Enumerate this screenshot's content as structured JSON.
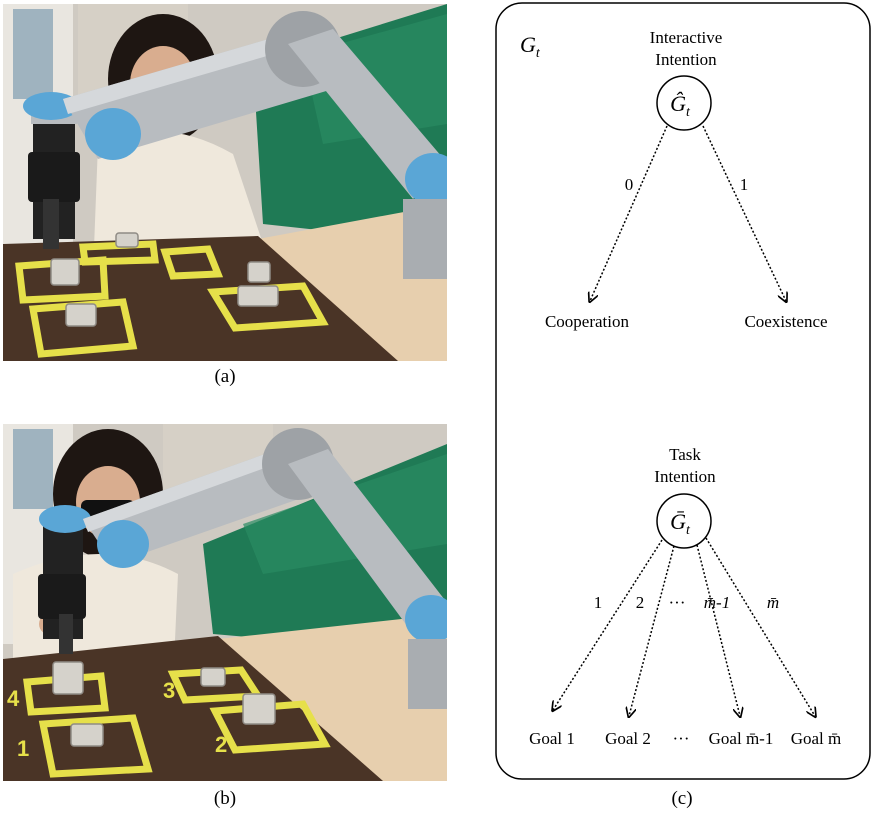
{
  "captions": {
    "a": "(a)",
    "b": "(b)",
    "c": "(c)"
  },
  "photo_b_labels": [
    "1",
    "2",
    "3",
    "4"
  ],
  "diagram": {
    "corner_label": {
      "base": "G",
      "sub": "t"
    },
    "interactive": {
      "title_line1": "Interactive",
      "title_line2": "Intention",
      "node_base": "Ĝ",
      "node_sub": "t",
      "branches": [
        "0",
        "1"
      ],
      "leaves": [
        "Cooperation",
        "Coexistence"
      ]
    },
    "task": {
      "title_line1": "Task",
      "title_line2": "Intention",
      "node_base": "Ḡ",
      "node_sub": "t",
      "branches": [
        "1",
        "2",
        "···",
        "m̄-1",
        "m̄"
      ],
      "leaves": [
        "Goal 1",
        "Goal 2",
        "···",
        "Goal m̄-1",
        "Goal m̄"
      ]
    }
  },
  "colors": {
    "table": "#4a3426",
    "tape": "#e6e04a",
    "curtain": "#1f7a55",
    "robot_silver": "#b8bcc0",
    "robot_blue": "#5aa6d6",
    "wood_board": "#e7cfae"
  }
}
